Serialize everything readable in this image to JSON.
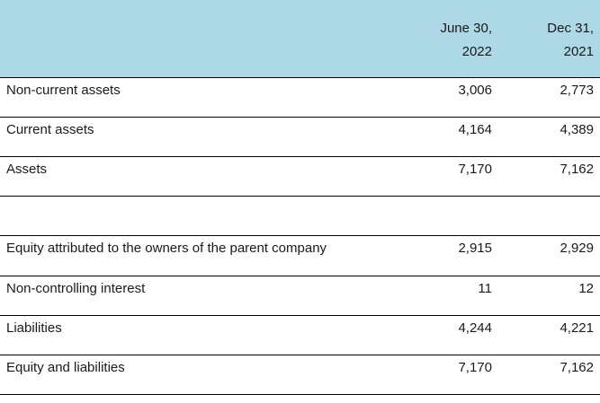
{
  "header": {
    "col1": [
      "June 30,",
      "2022"
    ],
    "col2": [
      "Dec 31,",
      "2021"
    ]
  },
  "rows": [
    {
      "label": "Non-current assets",
      "june_2022": "3,006",
      "dec_2021": "2,773"
    },
    {
      "label": "Current assets",
      "june_2022": "4,164",
      "dec_2021": "4,389"
    },
    {
      "label": "Assets",
      "june_2022": "7,170",
      "dec_2021": "7,162"
    },
    {
      "label": "",
      "june_2022": "",
      "dec_2021": ""
    },
    {
      "label": "Equity attributed to the owners of the parent company",
      "june_2022": "2,915",
      "dec_2021": "2,929"
    },
    {
      "label": "Non-controlling interest",
      "june_2022": "11",
      "dec_2021": "12"
    },
    {
      "label": "Liabilities",
      "june_2022": "4,244",
      "dec_2021": "4,221"
    },
    {
      "label": "Equity and liabilities",
      "june_2022": "7,170",
      "dec_2021": "7,162"
    }
  ],
  "colors": {
    "header_bg": "#add8e6",
    "rule": "#000000"
  }
}
